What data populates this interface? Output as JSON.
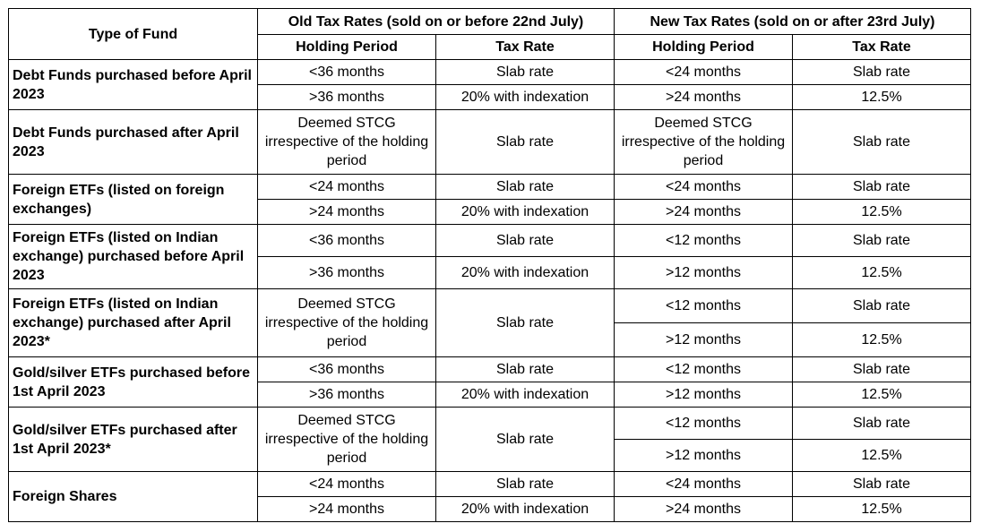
{
  "header": {
    "type_of_fund": "Type of Fund",
    "old_group": "Old Tax Rates (sold on or before 22nd July)",
    "new_group": "New Tax Rates (sold on or after 23rd July)",
    "holding_period": "Holding Period",
    "tax_rate": "Tax Rate"
  },
  "funds": [
    {
      "name": "Debt Funds purchased before April 2023"
    },
    {
      "name": "Debt Funds purchased after April 2023"
    },
    {
      "name": "Foreign ETFs (listed on foreign exchanges)"
    },
    {
      "name": "Foreign ETFs (listed on Indian exchange) purchased before April 2023"
    },
    {
      "name": "Foreign ETFs (listed on Indian exchange) purchased after April 2023*"
    },
    {
      "name": "Gold/silver ETFs purchased before 1st April 2023"
    },
    {
      "name": "Gold/silver ETFs purchased after 1st April 2023*"
    },
    {
      "name": "Foreign Shares"
    }
  ],
  "cells": {
    "f0": {
      "r0": {
        "old_hp": "<36 months",
        "old_tr": "Slab rate",
        "new_hp": "<24 months",
        "new_tr": "Slab rate"
      },
      "r1": {
        "old_hp": ">36 months",
        "old_tr": "20% with indexation",
        "new_hp": ">24 months",
        "new_tr": "12.5%"
      }
    },
    "f1": {
      "r0": {
        "old_hp": "Deemed STCG irrespective of the holding period",
        "old_tr": "Slab rate",
        "new_hp": "Deemed STCG irrespective of the holding period",
        "new_tr": "Slab rate"
      }
    },
    "f2": {
      "r0": {
        "old_hp": "<24 months",
        "old_tr": "Slab rate",
        "new_hp": "<24 months",
        "new_tr": "Slab rate"
      },
      "r1": {
        "old_hp": ">24 months",
        "old_tr": "20% with indexation",
        "new_hp": ">24 months",
        "new_tr": "12.5%"
      }
    },
    "f3": {
      "r0": {
        "old_hp": "<36 months",
        "old_tr": "Slab rate",
        "new_hp": "<12 months",
        "new_tr": "Slab rate"
      },
      "r1": {
        "old_hp": ">36 months",
        "old_tr": "20% with indexation",
        "new_hp": ">12 months",
        "new_tr": "12.5%"
      }
    },
    "f4": {
      "r0": {
        "old_hp": "Deemed STCG irrespective of the holding period",
        "old_tr": "Slab rate",
        "new_hp": "<12 months",
        "new_tr": "Slab rate"
      },
      "r1": {
        "new_hp": ">12 months",
        "new_tr": "12.5%"
      }
    },
    "f5": {
      "r0": {
        "old_hp": "<36 months",
        "old_tr": "Slab rate",
        "new_hp": "<12 months",
        "new_tr": "Slab rate"
      },
      "r1": {
        "old_hp": ">36 months",
        "old_tr": "20% with indexation",
        "new_hp": ">12 months",
        "new_tr": "12.5%"
      }
    },
    "f6": {
      "r0": {
        "old_hp": "Deemed STCG irrespective of the holding period",
        "old_tr": "Slab rate",
        "new_hp": "<12 months",
        "new_tr": "Slab rate"
      },
      "r1": {
        "new_hp": ">12 months",
        "new_tr": "12.5%"
      }
    },
    "f7": {
      "r0": {
        "old_hp": "<24 months",
        "old_tr": "Slab rate",
        "new_hp": "<24 months",
        "new_tr": "Slab rate"
      },
      "r1": {
        "old_hp": ">24 months",
        "old_tr": "20% with indexation",
        "new_hp": ">24 months",
        "new_tr": "12.5%"
      }
    }
  }
}
